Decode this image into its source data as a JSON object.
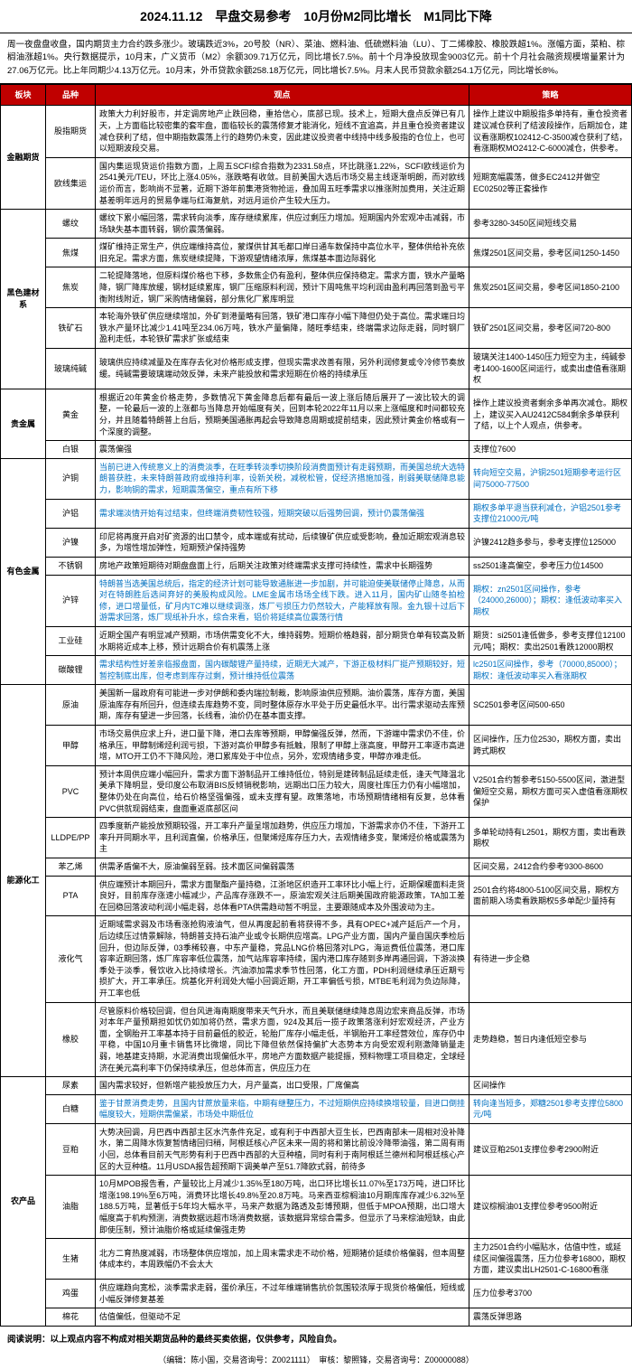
{
  "title": "2024.11.12　早盘交易参考　10月份M2同比增长　M1同比下降",
  "intro": "周一夜盘盘收盘，国内期货主力合约跌多涨少。玻璃跌近3%，20号胶（NR）、菜油、燃料油、低硫燃料油（LU）、丁二烯橡胶、橡胶跌超1%。涨幅方面，菜粕、棕榈油涨超1%。央行数据提示，10月末，广义货币（M2）余额309.71万亿元，同比增长7.5%。前十个月净投放现金9003亿元。前十个月社会融资规模增量累计为27.06万亿元。比上年同期少4.13万亿元。10月末，外币贷款余额258.18万亿元，同比增长7.5%。月末人民币贷款余额254.1万亿元，同比增长8%。",
  "headers": {
    "sector": "板块",
    "product": "品种",
    "view": "观点",
    "strategy": "策略"
  },
  "sectors": [
    {
      "name": "金融期货",
      "rows": [
        {
          "product": "股指期货",
          "view": "政策大力利好股市，并定调房地产止跌回稳，重拾信心，底部已现。技术上，短期大盘点反弹已有几天，上方面临比较密集的套牢盘，面临较长的震荡修复才能消化，短线不宜追高，并且重仓投资者建议减仓获利了结，但中期指数震荡上行的趋势仍未变，因此建议投资者中线持中线多股指的仓位上，也可以短期波段交易。",
          "strategy": "操作上建议中期股指多单持有，重仓投资者建议减仓获利了结波段操作，后期加仓，建议看涨期权102412-C-3500减仓获利了结，看涨期权MO2412-C-6000减仓，供参考。"
        },
        {
          "product": "欧线集运",
          "view": "国内集运现货运价指数方面，上周五SCFI综合指数为2331.58点，环比跳涨1.22%，SCFI欧线运价为2541美元/TEU，环比上涨4.05%，涨跌略有收敛。目前美国大选后市场交易主线逐渐明朗，而对欧线运价而言，影响尚不显著，近期下游年前集港货物抢运，叠加周五旺季需求以推涨附加费用，关注近期基差明年远月的贸易争端与红海复航，对远月运价产生较大压力。",
          "strategy": "短期宽幅震荡，做多EC2412并做空EC02502等正套操作"
        }
      ]
    },
    {
      "name": "黑色建材系",
      "rows": [
        {
          "product": "螺纹",
          "view": "螺纹下累小幅回落，需求转向淡季，库存继续累库，供应过剩压力增加。短期国内外宏观冲击减弱，市场缺失基本面转弱，钢价震荡偏弱。",
          "strategy": "参考3280-3450区间短线交易"
        },
        {
          "product": "焦煤",
          "view": "煤矿维持正常生产，供应端维持高位，蒙煤供甘其毛都口岸日通车数保持中高位水平，整体供给补充依旧充足。需求方面，焦炭继续提降，下游观望情绪浓厚，焦煤基本面边际弱化",
          "strategy": "焦煤2501区间交易，参考区间1250-1450"
        },
        {
          "product": "焦炭",
          "view": "二轮提降落地，但原料煤价格也下移，多数焦企仍有盈利，整体供应保持稳定。需求方面，铁水产量略降，钢厂降库放缓，钢材延续累库，钢厂压缩原料利润，预计下周吨焦平均利润由盈利再回落到盈亏平衡附线附近，钢厂采购情绪偏弱，部分焦化厂累库明显",
          "strategy": "焦炭2501区间交易，参考区间1850-2100"
        },
        {
          "product": "铁矿石",
          "view": "本轮海外铁矿供应继续增加，外矿到港量略有回落，铁矿港口库存小幅下降但仍处于高位。需求端日均铁水产量环比减少1.41吨至234.06万吨，铁水产量偏降，随旺季结束，终端需求边际走弱，同时钢厂盈利走低，本轮铁矿需求扩张或结束",
          "strategy": "铁矿2501区间交易，参考区间720-800"
        },
        {
          "product": "玻璃纯碱",
          "view": "玻璃供应持续减量及在库存去化对价格形成支撑，但现实需求改善有限，另外利润修复或令冷修节奏放缓。纯碱需要玻璃端动效反弹，未来产能投放和需求短期在价格的持续承压",
          "strategy": "玻璃关注1400-1450压力短空为主，纯碱参考1400-1600区间运行，或卖出虚值看涨期权"
        }
      ]
    },
    {
      "name": "贵金属",
      "rows": [
        {
          "product": "黄金",
          "view": "根据近20年黄金价格走势，多数情况下黄金降息后都有最后一波上涨后随后展开了一波比较大的调整，一轮最后一波的上涨都与当降息开始幅度有关，回到本轮2022年11月以来上涨幅度和时间都较充分，并且随着特朗普上台后，预期美国通胀再起会导致降息周期或提前结束，因此预计黄金价格或有一个深度的调整。",
          "strategy": "操作上建议投资者剩余多单再次减仓。期权上，建议买入AU2412C584剩余多单获利了结，以上个人观点，供参考。"
        },
        {
          "product": "白银",
          "view": "震荡偏强",
          "strategy": "支撑位7600"
        }
      ]
    },
    {
      "name": "有色金属",
      "rows": [
        {
          "product": "沪铜",
          "view": "当前已进入传统意义上的消费淡季，在旺季转淡季切换阶段消费面预计有走弱预期，而美国总统大选特朗普获胜，未来特朗普政府或维持利率，设新关税，减税松管，促经济措施加强，削弱美联储降息能力，影响铜的需求，短期震荡偏空，重点有所下移",
          "strategy": "转向短空交易，沪铜2501短期参考运行区间75000-77500",
          "blue": true
        },
        {
          "product": "沪铝",
          "view": "需求端淡情开始有过结束，但终端消费韧性较强，短期突破以后强势回调，预计仍震荡偏强",
          "strategy": "期权多单平退当获利减仓，沪铝2501参考支撑位21000元/吨",
          "blue": true
        },
        {
          "product": "沪镍",
          "view": "印尼将再度开启对矿资源的出口禁令，成本端或有扰动，后续镍矿供应或受影响，叠加近期宏观消息较多，为增性增加弹性，短期预沪保持强势",
          "strategy": "沪镍2412趋多参与，参考支撑位125000"
        },
        {
          "product": "不锈钢",
          "view": "房地产政策短期待对期盘盘面上行，后期关注政策对终端需求支撑可持续性，需求中长期强势",
          "strategy": "ss2501逢高偏空，参考压力位14500"
        },
        {
          "product": "沪锌",
          "view": "特朗普当选美国总统后，指定的经济计划可能导致通胀进一步加剧，并可能迫使美联储停止降息，从而对在特朗胜后选间弃好的美股构成风险。LME金属市场场全线下跌。进入11月，国内矿山随冬拍检修，进口增量低，矿月内TC难以继续调涨，炼厂亏损压力仍然较大，产能释放有限。金九银十过后下游需求回落，炼厂现纸补升水，综合来看，铝价将延续高位震荡行情",
          "strategy": "期权：zn2501区间操作，参考（24000,26000）；期权：逢低波动率买入期权",
          "blue": true
        },
        {
          "product": "工业硅",
          "view": "近期全国产有明显减产预期，市场供需变化不大，维持弱势。短期价格趋弱，部分期货仓单有较高及新水期将近成本上移，预计远期合价有机震荡上涨",
          "strategy": "期货：si2501逢低做多，参考支撑位12100元/吨；期权：卖出2501看跌12000期权"
        },
        {
          "product": "碳酸锂",
          "view": "需求结构性好差亲临报盘面，国内碳酸锂产量持续，近期无大减产，下游正极材料厂挺产预期较好，短暂控制底出库，但考虑到库存过剩，预计维持低位震荡",
          "strategy": "lc2501区间操作，参考（70000,85000）；期权：逢低波动率买入看涨期权",
          "blue": true
        }
      ]
    },
    {
      "name": "能源化工",
      "rows": [
        {
          "product": "原油",
          "view": "美国新一届政府有可能进一步对伊朗和委内瑞拉制裁，影响原油供应预期。油价震荡，库存方面，美国原油库存有所回升，但连续去库趋势不变，同时整体原存水平处于历史最低水平。出行需求驱动去库预期，库存有望进一步回落，长线看，油价仍在基本面支撑。",
          "strategy": "SC2501参考区间500-650"
        },
        {
          "product": "甲醇",
          "view": "市场交易供应求上升，进口量下降，港口去库等预期，甲醇偏强反弹，然而，下游端中需求仍不佳，价格承压，甲醇制烯烃利润亏损，下游对高价甲醇多有抵触，限制了甲醇上涨高度，甲醇开工率逐市高进增，MTO开工仍不下降风险，港口累库处于中位点，另外，宏观情绪多变，甲醇亦难走低。",
          "strategy": "区间操作，压力位2530，期权方面，卖出跨式期权"
        },
        {
          "product": "PVC",
          "view": "预计本周供应端小幅回升，需求方面下游制品开工维持低位，特别是建砖制品延续走低，逢天气降温北美承下降明显，受印度公布取消BIS反倾销税影响，远期出口压力较大，周度社库压力仍有小幅增加，整体仍处在向高位，给石价格坚强偏强，或未支撑有望。政策落地，市场预期情绪相有反复，总体看PVC供就现弱结束，盘面重返底部区间",
          "strategy": "V2501合约暂参考5150-5500区间，激进型偏短空交易，期权方面可买入虚值看涨期权保护"
        },
        {
          "product": "LLDPE/PP",
          "view": "四季度新产能投放预期较强，开工率升产量呈增加趋势，供应压力增加，下游需求亦仍不佳，下游开工率升开同期水平，且利润直偏，价格承压，但聚烯烃库存压力大，去观情绪多变，聚烯烃价格或震荡为主",
          "strategy": "多单轮动持有L2501，期权方面，卖出看跌期权"
        },
        {
          "product": "苯乙烯",
          "view": "供需矛盾偏不大，原油偏弱至弱。技术面区间偏弱震荡",
          "strategy": "区间交易，2412合约参考9300-8600"
        },
        {
          "product": "PTA",
          "view": "供应端预计本期回升，需求方面聚酯产量持稳，江浙地区织造开工率环比小幅上行，近期保暖面料走货良好，目前库存涨速小幅减少，产品库存涨跌不一，原油宏观关注后期美国政府能源政策，TA加工差在回稳回落波动利润小幅走弱，总体看PTA供需趋动暂不明显，主要跟随成本及外围波动为主。",
          "strategy": "2501合约将4800-5100区间交易，期权方面前期入场卖看跌期权5多单配少量持有"
        },
        {
          "product": "液化气",
          "view": "近期域需求弱及市场看涨抢购液油气，但从再度起前看将获得不多，具有OPEC+减产延后产一个月，后边续压过情景解除，特朗普支持石油产业或令长期供应增高。LPG产业方面，国内产量自国庆季检后回升，但边际反弹，03季稀较喜，中东产量稳，竞品LNG价格回落对LPG，海运费低位震荡，港口库容率近期回落，炼厂库容率低位震荡，加气站库容率持续，国内港口库存随到多岸再通回调，下游淡换季处于淡季，餐饮收入比持续增长。汽油添加需求季节性回落，化工方面，PDH利润继续承压近期亏损扩大，开工率承压。烷基化开利润处大幅小回调近期，开工率偏低亏损，MTBE毛利润为负边际降，开工率也低",
          "strategy": "有待进一步企稳"
        },
        {
          "product": "橡胶",
          "view": "尽管原料价格较回调，但台风进海南期度带来天气升水，而且美联储继续降息周边宏来商品反弹，市场对本年产量预期担如忧仍如加将仍然，需求方面，924及其后一揽子政策落涨利好宏观经济，产业方面，全钢胎开工率基本持于目前最低的胶近，轮胎厂库存小幅走低，半钢胎开工率经营效位，库存仍中平稳，中国10月重卡销售环比微增，同比下降但依然保持偏扩大态势本方向受宏观利刚激降销量走弱，地基建支持期，水泥消费出现偏低水平，房地产方面数据产能提振，预料物理工项目稳定，全球经济在美元高利率下仍保持续承压，但总体而言，供应压力在",
          "strategy": "走势趋稳，暂日内逢低短空参与"
        },
        {
          "product": "尿素",
          "view": "国内需求较好，但新增产能投放压力大，月产量高，出口受限，厂席偏高",
          "strategy": "区间操作"
        },
        {
          "product": "白糖",
          "view": "鉴于甘蔗消费走势，且国内甘蔗放量来临，中期有继整压力，不过短期供应持续换增较量，目进口倒挂幅度较大，短期供需偏紧，市场处中期低位",
          "strategy": "转向逢当短多，郑糖2501参考支撑位5800元/吨",
          "blue": true
        },
        {
          "product": "豆粕",
          "view": "大势决回调，月巴西中西部主区水汽条件充足，或有利于中西部大豆生长，巴西南部未一周相对没补降水，第二周降水恢复暂情绪回归稍，阿根廷核心产区未来一周的将和第比前设冷降带油强，第二周有雨小回，总体看目前天气形势有利于巴西中西部的大豆种植，同时有利于南阿根廷兰德州和阿根廷核心产区的大豆种植。11月USDA报告超预期下调美单产至51.7降欧式弱，前待多",
          "strategy": "建议豆粕2501支撑位参考2900附近"
        },
        {
          "product": "油脂",
          "view": "10月MPOB报告看，产量较比上月减少1.35%至180万吨，出口环比增长11.07%至173万吨，进口环比增涨198.19%至6万吨，消费环比增长49.8%至20.8万吨。马来西亚棕榈油10月期库库存减少6.32%至188.5万吨，显著低于5年均大幅水平，马来产数据为路透及彭博预期，但低于MPOA预期，出口增大幅度高于机构预测，消费数据远超市场消费数据，该数据异常综合需多。但显示了马来棕油短缺，由此即使压制，预计油脂价格或延续偏强走势",
          "strategy": "建议棕榈油01支撑位参考9500附近"
        },
        {
          "product": "生猪",
          "view": "北方二育热度减弱，市场整体供应增加，加上周末需求走不动价格，短期猪价延续价格偏弱，但本周整体成本约，本周跌幅仍不会太大",
          "strategy": "主力2501合约小幅贴水，估值中性，或延续区间偏强震荡，压力位参考16800，期权方面，建议卖出LH2501-C-16800看涨"
        },
        {
          "product": "鸡蛋",
          "view": "供应端趋向宽松，淡季需求走弱，蛋价承压，不过年维端销售抗价氛围较浓厚于现货价格偏低，短线或小幅反弹修复基差",
          "strategy": "压力位参考3700"
        },
        {
          "product": "棉花",
          "view": "估值偏低，但驱动不足",
          "strategy": "震荡反弹思路"
        }
      ],
      "split": {
        "before": "尿素",
        "name": "农产品"
      }
    }
  ],
  "footer": "阅读说明：以上观点内容不构成对相关期货品种的最终买卖依据，仅供参考，风险自负。",
  "editor": "（编辑：陈小国，交易咨询号：Z0021111）　审核：黎照锋，交易咨询号：Z00000088）"
}
